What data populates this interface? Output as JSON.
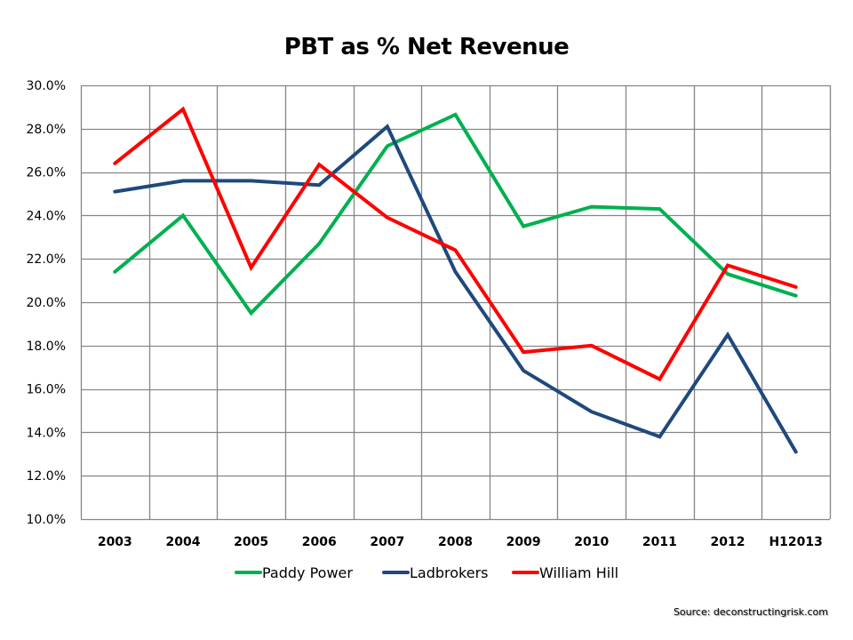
{
  "chart_data": {
    "type": "line",
    "title": "PBT as % Net Revenue",
    "xlabel": "",
    "ylabel": "",
    "categories": [
      "2003",
      "2004",
      "2005",
      "2006",
      "2007",
      "2008",
      "2009",
      "2010",
      "2011",
      "2012",
      "H12013"
    ],
    "ylim": [
      10,
      30
    ],
    "ytick_step": 2,
    "ytick_labels": [
      "10.0%",
      "12.0%",
      "14.0%",
      "16.0%",
      "18.0%",
      "20.0%",
      "22.0%",
      "24.0%",
      "26.0%",
      "28.0%",
      "30.0%"
    ],
    "grid": true,
    "legend_position": "bottom",
    "series": [
      {
        "name": "Paddy Power",
        "color": "#00B050",
        "values": [
          21.4,
          24.0,
          19.5,
          22.7,
          27.2,
          28.65,
          23.5,
          24.4,
          24.3,
          21.3,
          20.3
        ]
      },
      {
        "name": "Ladbrokers",
        "color": "#1F497D",
        "values": [
          25.1,
          25.6,
          25.6,
          25.4,
          28.1,
          21.4,
          16.85,
          14.95,
          13.8,
          18.5,
          13.1
        ]
      },
      {
        "name": "William Hill",
        "color": "#FF0000",
        "values": [
          26.4,
          28.9,
          21.6,
          26.35,
          23.9,
          22.4,
          17.7,
          18.0,
          16.45,
          21.7,
          20.7
        ]
      }
    ]
  },
  "source": "Source: deconstructingrisk.com",
  "colors": {
    "grid": "#868686"
  }
}
